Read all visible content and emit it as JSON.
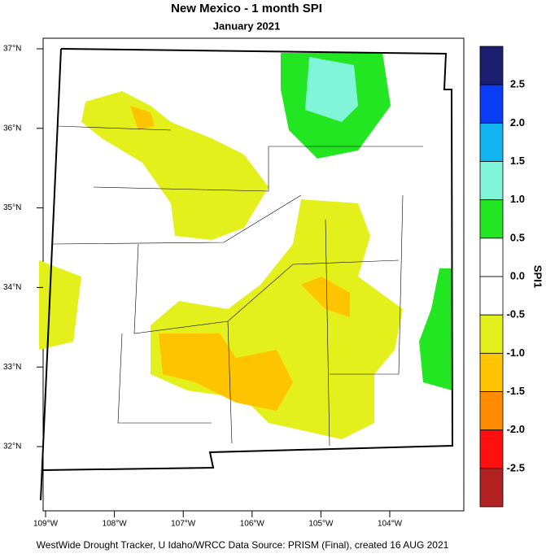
{
  "title": "New Mexico - 1 month SPI",
  "subtitle": "January 2021",
  "lat_labels": [
    "37°N",
    "36°N",
    "35°N",
    "34°N",
    "33°N",
    "32°N"
  ],
  "lon_labels": [
    "109°W",
    "108°W",
    "107°W",
    "106°W",
    "105°W",
    "104°W"
  ],
  "colorbar": {
    "label": "SPI1",
    "tick_labels": [
      "2.5",
      "2.0",
      "1.5",
      "1.0",
      "0.5",
      "0.0",
      "-0.5",
      "-1.0",
      "-1.5",
      "-2.0",
      "-2.5"
    ],
    "colors": [
      "#1c1f70",
      "#0a3cf5",
      "#12b4f0",
      "#80f5d8",
      "#22e622",
      "#ffffff",
      "#ffffff",
      "#e4f01c",
      "#ffc400",
      "#ff8c00",
      "#ff1010",
      "#b22222"
    ]
  },
  "footer": "WestWide Drought Tracker, U Idaho/WRCC Data Source: PRISM (Final), created 16 AUG 2021"
}
